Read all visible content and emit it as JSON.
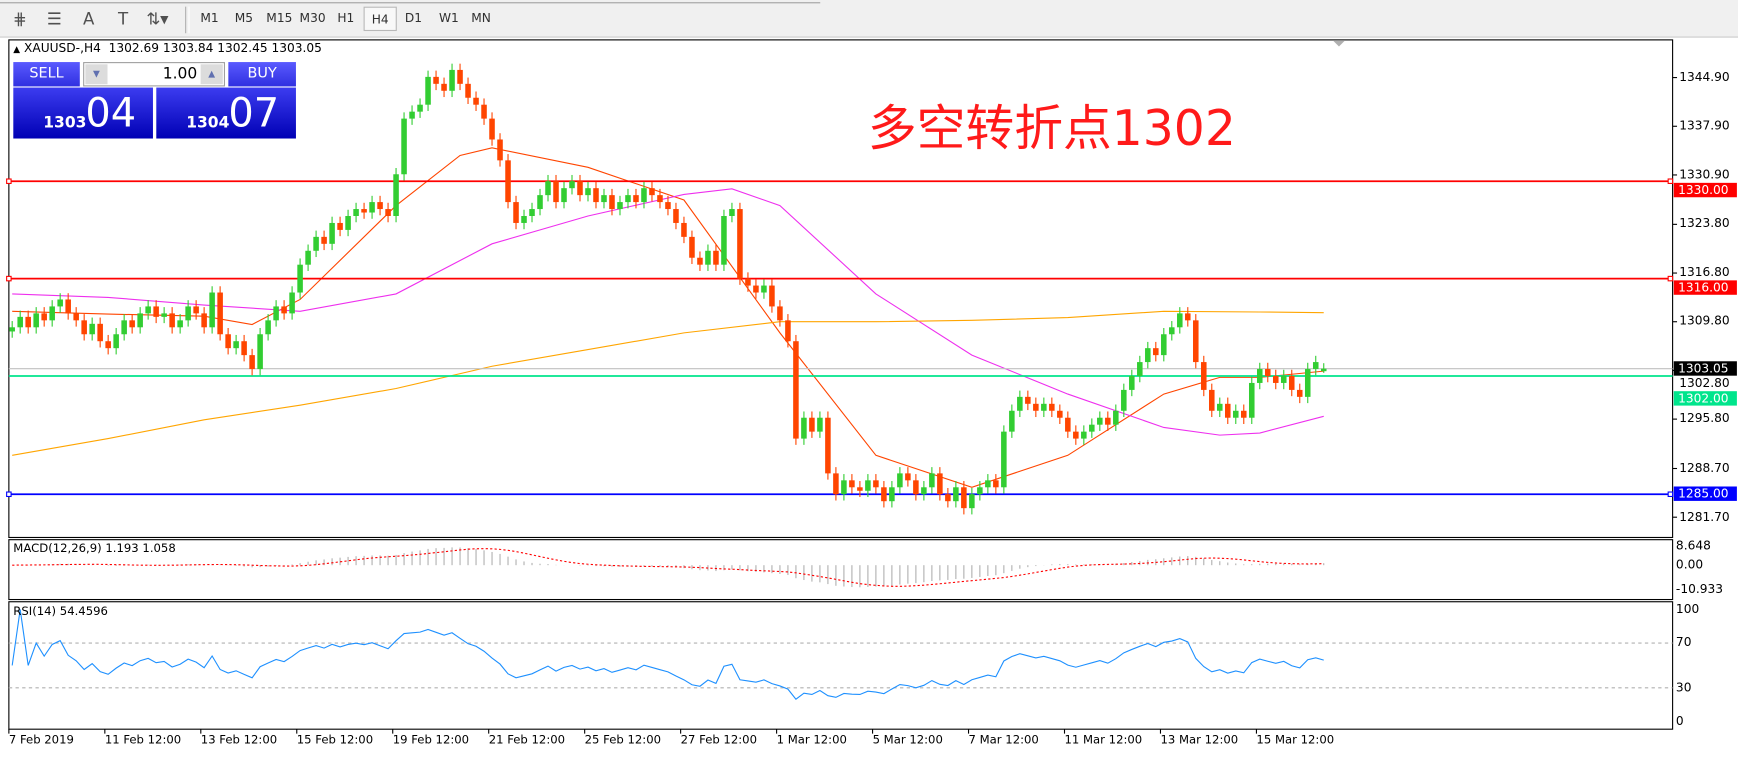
{
  "toolbar": {
    "tools": [
      {
        "name": "fibonacci-fan-icon",
        "glyph": "⋕"
      },
      {
        "name": "fibonacci-lines-icon",
        "glyph": "☰"
      },
      {
        "name": "text-icon",
        "glyph": "A"
      },
      {
        "name": "text-label-icon",
        "glyph": "T"
      },
      {
        "name": "arrows-icon",
        "glyph": "⇅▾"
      }
    ],
    "timeframes": [
      "M1",
      "M5",
      "M15",
      "M30",
      "H1",
      "H4",
      "D1",
      "W1",
      "MN"
    ],
    "active_timeframe": "H4"
  },
  "header": {
    "symbol_line": "XAUUSD-,H4  1302.69 1303.84 1302.45 1303.05"
  },
  "trade_panel": {
    "sell_label": "SELL",
    "buy_label": "BUY",
    "lot_value": "1.00",
    "sell_price_prefix": "1303",
    "sell_price_big": "04",
    "buy_price_prefix": "1304",
    "buy_price_big": "07"
  },
  "annotation": "多空转折点1302",
  "colors": {
    "bull": "#32cd32",
    "bear": "#ff4500",
    "ma_fast": "#ff4500",
    "ma_mid": "#ee30ee",
    "ma_slow": "#ffa500",
    "resistance": "#ff0000",
    "pivot": "#00e58c",
    "support": "#0000ff",
    "rsi": "#1e90ff",
    "macd_signal": "#ff0000",
    "macd_hist": "#b0b0b0"
  },
  "chart_data": {
    "type": "candlestick",
    "symbol": "XAUUSD-",
    "timeframe": "H4",
    "last_bar": {
      "open": 1302.69,
      "high": 1303.84,
      "low": 1302.45,
      "close": 1303.05
    },
    "ylim": [
      1277.5,
      1350.3
    ],
    "y_ticks": [
      "1344.90",
      "1337.90",
      "1330.90",
      "1323.80",
      "1316.80",
      "1309.80",
      "1302.80",
      "1295.80",
      "1288.70",
      "1281.70"
    ],
    "x_labels": [
      {
        "bar": 0,
        "label": "7 Feb 2019"
      },
      {
        "bar": 12,
        "label": "11 Feb 12:00"
      },
      {
        "bar": 24,
        "label": "13 Feb 12:00"
      },
      {
        "bar": 36,
        "label": "15 Feb 12:00"
      },
      {
        "bar": 48,
        "label": "19 Feb 12:00"
      },
      {
        "bar": 60,
        "label": "21 Feb 12:00"
      },
      {
        "bar": 72,
        "label": "25 Feb 12:00"
      },
      {
        "bar": 84,
        "label": "27 Feb 12:00"
      },
      {
        "bar": 96,
        "label": "1 Mar 12:00"
      },
      {
        "bar": 108,
        "label": "5 Mar 12:00"
      },
      {
        "bar": 120,
        "label": "7 Mar 12:00"
      },
      {
        "bar": 132,
        "label": "11 Mar 12:00"
      },
      {
        "bar": 144,
        "label": "13 Mar 12:00"
      },
      {
        "bar": 156,
        "label": "15 Mar 12:00"
      }
    ],
    "closes": [
      1309,
      1310.5,
      1309,
      1311,
      1310,
      1312,
      1313,
      1311,
      1310,
      1308,
      1309.5,
      1307,
      1306,
      1308,
      1310,
      1309,
      1311,
      1312,
      1310.5,
      1311,
      1309,
      1310,
      1312,
      1311,
      1309,
      1314,
      1308,
      1306,
      1307,
      1305,
      1303,
      1308,
      1310,
      1312,
      1311,
      1314,
      1318,
      1320,
      1322,
      1321,
      1324,
      1323,
      1325,
      1326,
      1325.5,
      1327,
      1326,
      1325,
      1331,
      1339,
      1340,
      1341,
      1345,
      1344,
      1343,
      1346,
      1344,
      1342,
      1341,
      1339,
      1336,
      1333,
      1327,
      1324,
      1325,
      1326,
      1328,
      1330,
      1327,
      1329,
      1330,
      1328,
      1329,
      1327,
      1328,
      1326,
      1327,
      1328,
      1327,
      1329,
      1328,
      1327,
      1326,
      1324,
      1322,
      1319,
      1318,
      1320,
      1318,
      1325,
      1326,
      1316,
      1315,
      1314,
      1315,
      1312,
      1310,
      1307,
      1293,
      1296,
      1294,
      1296,
      1288,
      1285,
      1287,
      1286,
      1285.5,
      1287,
      1286,
      1284,
      1286,
      1288,
      1287,
      1285,
      1286,
      1288,
      1285,
      1284,
      1286,
      1283,
      1285,
      1286,
      1287,
      1286,
      1294,
      1297,
      1299,
      1298,
      1297,
      1298,
      1297,
      1296,
      1294,
      1293,
      1294,
      1295,
      1296,
      1295,
      1297,
      1300,
      1302,
      1304,
      1306,
      1305,
      1308,
      1309,
      1311,
      1310,
      1304,
      1300,
      1297,
      1298,
      1296,
      1297,
      1296,
      1301,
      1303,
      1302,
      1301,
      1302,
      1300,
      1299,
      1303,
      1304,
      1303.05
    ],
    "moving_averages": [
      {
        "role": "fast",
        "points": [
          [
            0,
            1311.3
          ],
          [
            12,
            1310.9
          ],
          [
            24,
            1310.6
          ],
          [
            30,
            1309.4
          ],
          [
            36,
            1313
          ],
          [
            48,
            1326.5
          ],
          [
            56,
            1333.7
          ],
          [
            60,
            1334.8
          ],
          [
            72,
            1332
          ],
          [
            84,
            1327.3
          ],
          [
            96,
            1308.2
          ],
          [
            108,
            1290.6
          ],
          [
            120,
            1286
          ],
          [
            132,
            1290.6
          ],
          [
            144,
            1299.4
          ],
          [
            151,
            1301.8
          ],
          [
            156,
            1301.8
          ],
          [
            164,
            1302.7
          ]
        ]
      },
      {
        "role": "mid",
        "points": [
          [
            0,
            1313.8
          ],
          [
            12,
            1313.3
          ],
          [
            24,
            1312.2
          ],
          [
            36,
            1311.3
          ],
          [
            48,
            1313.8
          ],
          [
            60,
            1321
          ],
          [
            72,
            1325
          ],
          [
            84,
            1328.1
          ],
          [
            90,
            1328.9
          ],
          [
            96,
            1326.5
          ],
          [
            108,
            1313.8
          ],
          [
            120,
            1305
          ],
          [
            132,
            1299.4
          ],
          [
            144,
            1294.6
          ],
          [
            151,
            1293.5
          ],
          [
            156,
            1293.8
          ],
          [
            164,
            1296.2
          ]
        ]
      },
      {
        "role": "slow",
        "points": [
          [
            0,
            1290.6
          ],
          [
            12,
            1293
          ],
          [
            24,
            1295.7
          ],
          [
            36,
            1297.8
          ],
          [
            48,
            1300.2
          ],
          [
            60,
            1303.4
          ],
          [
            72,
            1305.8
          ],
          [
            84,
            1308.2
          ],
          [
            96,
            1309.8
          ],
          [
            108,
            1309.8
          ],
          [
            120,
            1310
          ],
          [
            132,
            1310.4
          ],
          [
            144,
            1311.3
          ],
          [
            156,
            1311.2
          ],
          [
            164,
            1311.1
          ]
        ]
      }
    ],
    "levels": [
      {
        "price": 1330.0,
        "label": "1330.00",
        "role": "resistance"
      },
      {
        "price": 1316.0,
        "label": "1316.00",
        "role": "resistance"
      },
      {
        "price": 1302.0,
        "label": "1302.00",
        "role": "pivot"
      },
      {
        "price": 1285.0,
        "label": "1285.00",
        "role": "support"
      }
    ],
    "current_price": {
      "price": 1303.05,
      "label": "1303.05"
    },
    "macd": {
      "label": "MACD(12,26,9) 1.193 1.058",
      "ticks": [
        "8.648",
        "0.00",
        "-10.933"
      ],
      "ylim": [
        -10.933,
        8.648
      ]
    },
    "rsi": {
      "label": "RSI(14) 54.4596",
      "ticks": [
        "100",
        "70",
        "30",
        "0"
      ],
      "levels": [
        70,
        30
      ],
      "ylim": [
        0,
        100
      ]
    }
  }
}
